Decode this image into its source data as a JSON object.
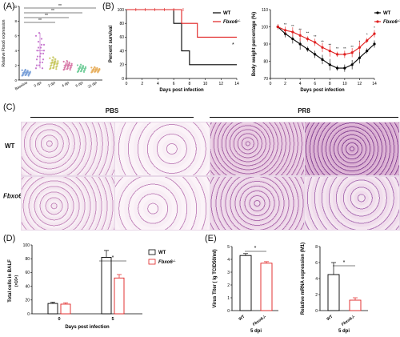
{
  "panels": {
    "A": "(A)",
    "B": "(B)",
    "C": "(C)",
    "D": "(D)",
    "E": "(E)"
  },
  "panelA": {
    "ylabel": "Relative Fbxo6 expression",
    "yticks": [
      "0",
      "2",
      "4",
      "6",
      "8",
      "10"
    ],
    "categories": [
      "Baseline",
      "0 dpi",
      "2 dpi",
      "4 dpi",
      "6 dpi",
      "21 dpi"
    ],
    "sig": [
      "**",
      "**",
      "**",
      "**"
    ],
    "colors": [
      "#7aa0d8",
      "#c87ad0",
      "#c8c860",
      "#d87aa8",
      "#7ad0a0",
      "#e8b060"
    ]
  },
  "panelB1": {
    "ylabel": "Percent survival",
    "xlabel": "Days post infection",
    "yticks": [
      "0",
      "20",
      "40",
      "60",
      "80",
      "100"
    ],
    "xticks": [
      "0",
      "2",
      "4",
      "6",
      "8",
      "10",
      "12",
      "14"
    ],
    "sig": "*"
  },
  "panelB2": {
    "ylabel": "Body weight percentage (%)",
    "xlabel": "Days post infection",
    "yticks": [
      "70",
      "80",
      "90",
      "100",
      "110"
    ],
    "xticks": [
      "0",
      "2",
      "4",
      "6",
      "8",
      "10",
      "12",
      "14"
    ],
    "sig": "**"
  },
  "legendB": {
    "wt": "WT",
    "ko": "Fbxo6",
    "ko_sup": "-/-"
  },
  "panelC": {
    "pbs": "PBS",
    "pr8": "PR8",
    "wt": "WT",
    "ko": "Fbxo6",
    "ko_sup": "-/-"
  },
  "panelD": {
    "ylabel": "Total cells in BALF",
    "yunit": "(×10⁴)",
    "xlabel": "Days post infection",
    "yticks": [
      "0",
      "20",
      "40",
      "60",
      "80",
      "100"
    ],
    "xticks": [
      "0",
      "5"
    ],
    "sig": "*",
    "legend_wt": "WT",
    "legend_ko": "Fbxo6",
    "legend_ko_sup": "-/-"
  },
  "panelE1": {
    "ylabel": "Virus Titer ( lg TCID50/ml)",
    "yticks": [
      "0",
      "1",
      "2",
      "3",
      "4",
      "5"
    ],
    "categories": [
      "WT",
      "Fbxo6-/-"
    ],
    "xlabel": "5 dpi",
    "sig": "*"
  },
  "panelE2": {
    "ylabel": "Relative mRNA expression (M1)",
    "yticks": [
      "0",
      "2",
      "4",
      "6",
      "8"
    ],
    "categories": [
      "WT",
      "Fbxo6-/-"
    ],
    "xlabel": "5 dpi",
    "sig": "*"
  },
  "chart_data": [
    {
      "type": "scatter",
      "title": "",
      "ylabel": "Relative Fbxo6 expression",
      "categories": [
        "Baseline",
        "0 dpi",
        "2 dpi",
        "4 dpi",
        "6 dpi",
        "21 dpi"
      ],
      "means": [
        1.0,
        4.0,
        2.3,
        2.0,
        1.6,
        1.4
      ],
      "ylim": [
        0,
        10
      ]
    },
    {
      "type": "line",
      "ylabel": "Percent survival",
      "xlabel": "Days post infection",
      "ylim": [
        0,
        100
      ],
      "series": [
        {
          "name": "WT",
          "x": [
            0,
            6,
            6,
            7,
            7,
            8,
            8,
            14
          ],
          "y": [
            100,
            100,
            80,
            80,
            40,
            40,
            20,
            20
          ]
        },
        {
          "name": "Fbxo6-/-",
          "x": [
            0,
            7,
            7,
            9,
            9,
            14
          ],
          "y": [
            100,
            100,
            80,
            80,
            60,
            60
          ]
        }
      ]
    },
    {
      "type": "line",
      "ylabel": "Body weight percentage (%)",
      "xlabel": "Days post infection",
      "ylim": [
        70,
        110
      ],
      "x": [
        1,
        2,
        3,
        4,
        5,
        6,
        7,
        8,
        9,
        10,
        11,
        12,
        13,
        14
      ],
      "series": [
        {
          "name": "WT",
          "values": [
            100,
            96,
            93,
            90,
            87,
            84,
            81,
            78,
            76,
            76,
            78,
            82,
            86,
            90
          ]
        },
        {
          "name": "Fbxo6-/-",
          "values": [
            100,
            98,
            97,
            95,
            93,
            91,
            88,
            86,
            84,
            84,
            85,
            88,
            92,
            96
          ]
        }
      ]
    },
    {
      "type": "bar",
      "ylabel": "Total cells in BALF",
      "xlabel": "Days post infection",
      "categories": [
        "0",
        "5"
      ],
      "ylim": [
        0,
        100
      ],
      "series": [
        {
          "name": "WT",
          "values": [
            15,
            82
          ],
          "errors": [
            2,
            10
          ]
        },
        {
          "name": "Fbxo6-/-",
          "values": [
            14,
            52
          ],
          "errors": [
            2,
            5
          ]
        }
      ]
    },
    {
      "type": "bar",
      "ylabel": "Virus Titer ( lg TCID50/ml)",
      "xlabel": "5 dpi",
      "categories": [
        "WT",
        "Fbxo6-/-"
      ],
      "ylim": [
        0,
        5
      ],
      "values": [
        4.3,
        3.7
      ],
      "errors": [
        0.15,
        0.12
      ]
    },
    {
      "type": "bar",
      "ylabel": "Relative mRNA expression (M1)",
      "xlabel": "5 dpi",
      "categories": [
        "WT",
        "Fbxo6-/-"
      ],
      "ylim": [
        0,
        8
      ],
      "values": [
        4.5,
        1.3
      ],
      "errors": [
        1.5,
        0.3
      ]
    }
  ]
}
